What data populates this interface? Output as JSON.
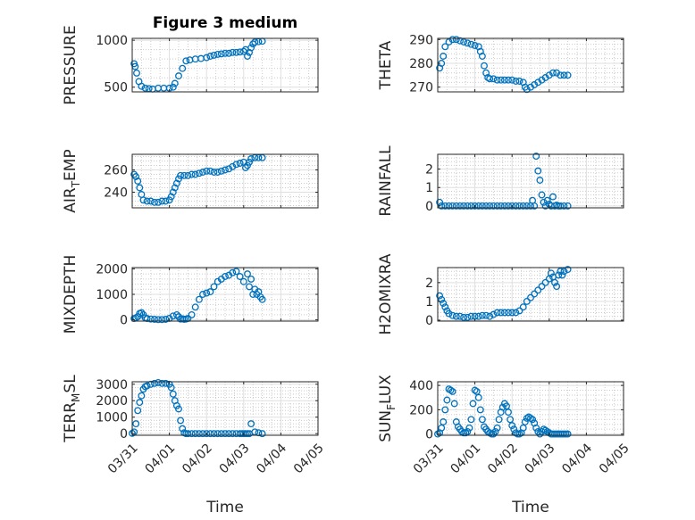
{
  "figure": {
    "title": "Figure 3 medium",
    "marker_color": "#0072BD"
  },
  "x_axis": {
    "label": "Time",
    "ticks": [
      "03/31",
      "04/01",
      "04/02",
      "04/03",
      "04/04",
      "04/05"
    ],
    "range_days": [
      0,
      5
    ]
  },
  "chart_data": [
    {
      "type": "scatter",
      "ylabel": "PRESSURE",
      "ylim": [
        450,
        1020
      ],
      "yticks": [
        500,
        1000
      ],
      "ytick_labels": [
        "500",
        "1000"
      ],
      "series": [
        {
          "x": [
            0.05,
            0.08,
            0.12,
            0.18,
            0.25,
            0.35,
            0.45,
            0.55,
            0.7,
            0.85,
            1.0,
            1.1,
            1.15,
            1.25,
            1.35,
            1.45,
            1.55,
            1.7,
            1.85,
            2.0,
            2.1,
            2.2,
            2.3,
            2.4,
            2.5,
            2.6,
            2.7,
            2.8,
            2.9,
            3.0,
            3.05,
            3.1,
            3.15,
            3.2,
            3.25,
            3.3,
            3.4,
            3.5
          ],
          "y": [
            750,
            720,
            650,
            560,
            510,
            490,
            485,
            480,
            490,
            490,
            490,
            500,
            540,
            620,
            700,
            780,
            790,
            800,
            805,
            815,
            830,
            840,
            850,
            855,
            860,
            860,
            870,
            870,
            875,
            880,
            900,
            830,
            870,
            920,
            960,
            980,
            985,
            990
          ]
        }
      ]
    },
    {
      "type": "scatter",
      "ylabel": "THETA",
      "ylim": [
        268,
        290.5
      ],
      "yticks": [
        270,
        280,
        290
      ],
      "ytick_labels": [
        "270",
        "280",
        "290"
      ],
      "series": [
        {
          "x": [
            0.05,
            0.1,
            0.15,
            0.2,
            0.3,
            0.4,
            0.5,
            0.6,
            0.7,
            0.8,
            0.9,
            1.0,
            1.1,
            1.15,
            1.2,
            1.25,
            1.3,
            1.35,
            1.4,
            1.5,
            1.6,
            1.7,
            1.8,
            1.9,
            2.0,
            2.1,
            2.2,
            2.3,
            2.35,
            2.4,
            2.5,
            2.6,
            2.7,
            2.8,
            2.9,
            3.0,
            3.1,
            3.2,
            3.3,
            3.4,
            3.5
          ],
          "y": [
            278,
            280,
            283,
            287,
            289,
            290,
            290,
            289.5,
            289,
            288.5,
            288,
            287.5,
            287,
            285,
            283,
            279,
            276,
            274,
            273.5,
            273.5,
            273,
            273,
            273,
            273,
            273,
            272.5,
            272.5,
            272,
            270,
            269,
            270,
            271,
            272,
            273,
            274,
            275,
            276,
            276,
            275,
            275,
            275
          ]
        }
      ]
    },
    {
      "type": "scatter",
      "ylabel": "AIR_TEMP",
      "ylim": [
        226,
        274
      ],
      "yticks": [
        240,
        260
      ],
      "ytick_labels": [
        "240",
        "260"
      ],
      "series": [
        {
          "x": [
            0.05,
            0.1,
            0.15,
            0.2,
            0.25,
            0.3,
            0.4,
            0.5,
            0.6,
            0.7,
            0.8,
            0.9,
            1.0,
            1.05,
            1.1,
            1.15,
            1.2,
            1.25,
            1.3,
            1.4,
            1.5,
            1.6,
            1.7,
            1.8,
            1.9,
            2.0,
            2.1,
            2.2,
            2.3,
            2.4,
            2.5,
            2.6,
            2.7,
            2.8,
            2.9,
            3.0,
            3.05,
            3.1,
            3.15,
            3.2,
            3.3,
            3.4,
            3.5
          ],
          "y": [
            256,
            254,
            250,
            244,
            238,
            233,
            232,
            232,
            231,
            231,
            232,
            232,
            233,
            236,
            240,
            244,
            248,
            252,
            255,
            255,
            255,
            256,
            256,
            257,
            258,
            259,
            259,
            258,
            258,
            259,
            260,
            261,
            263,
            265,
            266,
            267,
            262,
            264,
            267,
            270,
            271,
            271,
            271
          ]
        }
      ]
    },
    {
      "type": "scatter",
      "ylabel": "RAINFALL",
      "ylim": [
        -0.1,
        2.8
      ],
      "yticks": [
        0,
        1,
        2
      ],
      "ytick_labels": [
        "0",
        "1",
        "2"
      ],
      "series": [
        {
          "x": [
            0.05,
            0.1,
            0.2,
            0.3,
            0.4,
            0.5,
            0.6,
            0.7,
            0.8,
            0.9,
            1.0,
            1.1,
            1.2,
            1.3,
            1.4,
            1.5,
            1.6,
            1.7,
            1.8,
            1.9,
            2.0,
            2.1,
            2.2,
            2.3,
            2.4,
            2.5,
            2.55,
            2.6,
            2.65,
            2.7,
            2.75,
            2.8,
            2.85,
            2.9,
            2.95,
            3.0,
            3.05,
            3.1,
            3.15,
            3.2,
            3.25,
            3.3,
            3.4,
            3.5
          ],
          "y": [
            0.2,
            0,
            0,
            0,
            0,
            0,
            0,
            0,
            0,
            0,
            0,
            0,
            0,
            0,
            0,
            0,
            0,
            0,
            0,
            0,
            0,
            0,
            0,
            0,
            0,
            0,
            0.3,
            0,
            2.7,
            1.9,
            1.4,
            0.6,
            0.2,
            0,
            0.3,
            0.1,
            0,
            0.5,
            0,
            0.05,
            0,
            0,
            0,
            0
          ]
        }
      ]
    },
    {
      "type": "scatter",
      "ylabel": "MIXDEPTH",
      "ylim": [
        -50,
        2050
      ],
      "yticks": [
        0,
        1000,
        2000
      ],
      "ytick_labels": [
        "0",
        "1000",
        "2000"
      ],
      "series": [
        {
          "x": [
            0.05,
            0.1,
            0.15,
            0.2,
            0.25,
            0.3,
            0.35,
            0.4,
            0.5,
            0.6,
            0.7,
            0.8,
            0.9,
            1.0,
            1.1,
            1.2,
            1.25,
            1.3,
            1.35,
            1.4,
            1.45,
            1.5,
            1.6,
            1.7,
            1.8,
            1.9,
            2.0,
            2.1,
            2.2,
            2.3,
            2.4,
            2.5,
            2.6,
            2.7,
            2.8,
            2.9,
            3.0,
            3.1,
            3.15,
            3.2,
            3.25,
            3.3,
            3.35,
            3.4,
            3.45,
            3.5
          ],
          "y": [
            50,
            80,
            120,
            250,
            280,
            200,
            80,
            50,
            30,
            20,
            10,
            10,
            20,
            60,
            150,
            200,
            120,
            30,
            40,
            20,
            30,
            50,
            200,
            500,
            800,
            1000,
            1050,
            1100,
            1300,
            1500,
            1600,
            1700,
            1750,
            1850,
            1900,
            1700,
            1500,
            1800,
            1300,
            1600,
            1000,
            1200,
            1000,
            1100,
            900,
            800
          ]
        }
      ]
    },
    {
      "type": "scatter",
      "ylabel": "H2OMIXRA",
      "ylim": [
        -0.05,
        2.8
      ],
      "yticks": [
        0,
        1,
        2
      ],
      "ytick_labels": [
        "0",
        "1",
        "2"
      ],
      "series": [
        {
          "x": [
            0.05,
            0.1,
            0.15,
            0.2,
            0.25,
            0.3,
            0.4,
            0.5,
            0.6,
            0.7,
            0.8,
            0.9,
            1.0,
            1.1,
            1.2,
            1.3,
            1.4,
            1.5,
            1.6,
            1.7,
            1.8,
            1.9,
            2.0,
            2.1,
            2.2,
            2.3,
            2.4,
            2.5,
            2.6,
            2.7,
            2.8,
            2.9,
            3.0,
            3.05,
            3.1,
            3.15,
            3.2,
            3.25,
            3.3,
            3.35,
            3.4,
            3.5
          ],
          "y": [
            1.3,
            1.1,
            0.9,
            0.7,
            0.5,
            0.35,
            0.25,
            0.2,
            0.2,
            0.15,
            0.15,
            0.2,
            0.2,
            0.2,
            0.25,
            0.25,
            0.2,
            0.3,
            0.4,
            0.4,
            0.4,
            0.4,
            0.4,
            0.4,
            0.5,
            0.7,
            1.0,
            1.2,
            1.4,
            1.6,
            1.8,
            2.0,
            2.2,
            2.5,
            2.3,
            2.0,
            1.8,
            2.4,
            2.6,
            2.4,
            2.6,
            2.7
          ]
        }
      ]
    },
    {
      "type": "scatter",
      "ylabel": "TERR_MSL",
      "ylim": [
        -100,
        3150
      ],
      "yticks": [
        0,
        1000,
        2000,
        3000
      ],
      "ytick_labels": [
        "0",
        "1000",
        "2000",
        "3000"
      ],
      "series": [
        {
          "x": [
            0.0,
            0.05,
            0.1,
            0.15,
            0.2,
            0.25,
            0.3,
            0.35,
            0.4,
            0.5,
            0.6,
            0.7,
            0.8,
            0.9,
            1.0,
            1.05,
            1.1,
            1.15,
            1.2,
            1.25,
            1.3,
            1.35,
            1.4,
            1.45,
            1.5,
            1.6,
            1.7,
            1.8,
            1.9,
            2.0,
            2.1,
            2.2,
            2.3,
            2.4,
            2.5,
            2.6,
            2.7,
            2.8,
            2.9,
            2.95,
            3.0,
            3.05,
            3.1,
            3.15,
            3.2,
            3.3,
            3.4,
            3.5
          ],
          "y": [
            20,
            100,
            600,
            1400,
            1900,
            2300,
            2700,
            2850,
            2900,
            3000,
            3050,
            3100,
            3050,
            3050,
            3000,
            2800,
            2400,
            2000,
            1700,
            1500,
            800,
            300,
            50,
            0,
            0,
            0,
            0,
            0,
            0,
            0,
            0,
            0,
            0,
            0,
            0,
            0,
            0,
            0,
            0,
            0,
            0,
            0,
            0,
            0,
            600,
            100,
            50,
            0
          ]
        }
      ]
    },
    {
      "type": "scatter",
      "ylabel": "SUN_FLUX",
      "ylim": [
        -10,
        430
      ],
      "yticks": [
        0,
        200,
        400
      ],
      "ytick_labels": [
        "0",
        "200",
        "400"
      ],
      "series": [
        {
          "x": [
            0.0,
            0.05,
            0.1,
            0.15,
            0.2,
            0.25,
            0.3,
            0.35,
            0.4,
            0.45,
            0.5,
            0.55,
            0.6,
            0.65,
            0.7,
            0.75,
            0.8,
            0.85,
            0.9,
            0.95,
            1.0,
            1.05,
            1.1,
            1.15,
            1.2,
            1.25,
            1.3,
            1.35,
            1.4,
            1.45,
            1.5,
            1.55,
            1.6,
            1.65,
            1.7,
            1.75,
            1.8,
            1.85,
            1.9,
            1.95,
            2.0,
            2.05,
            2.1,
            2.15,
            2.2,
            2.25,
            2.3,
            2.35,
            2.4,
            2.45,
            2.5,
            2.55,
            2.6,
            2.65,
            2.7,
            2.75,
            2.8,
            2.85,
            2.9,
            2.95,
            3.0,
            3.05,
            3.1,
            3.15,
            3.2,
            3.25,
            3.3,
            3.35,
            3.4,
            3.45,
            3.5
          ],
          "y": [
            0,
            10,
            50,
            100,
            200,
            280,
            370,
            360,
            350,
            250,
            100,
            60,
            40,
            20,
            10,
            10,
            20,
            50,
            120,
            250,
            360,
            350,
            300,
            200,
            120,
            60,
            40,
            20,
            10,
            0,
            0,
            20,
            50,
            120,
            180,
            220,
            250,
            230,
            180,
            120,
            70,
            40,
            10,
            0,
            0,
            10,
            50,
            100,
            130,
            140,
            130,
            120,
            90,
            50,
            20,
            0,
            20,
            40,
            30,
            20,
            10,
            0,
            0,
            0,
            0,
            0,
            0,
            0,
            0,
            0,
            0
          ]
        }
      ]
    }
  ]
}
